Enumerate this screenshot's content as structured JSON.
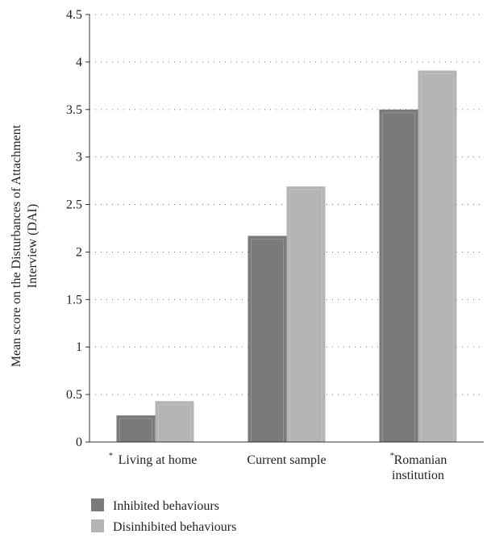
{
  "chart_data": {
    "type": "bar",
    "title": "",
    "xlabel": "",
    "ylabel_lines": [
      "Mean score on the Disturbances of Attachment",
      "Interview (DAI)"
    ],
    "categories": [
      {
        "lines": [
          "Living at home"
        ],
        "marked": true
      },
      {
        "lines": [
          "Current sample"
        ],
        "marked": false
      },
      {
        "lines": [
          "Romanian",
          "institution"
        ],
        "marked": true
      }
    ],
    "category_marker": "*",
    "series": [
      {
        "name": "Inhibited behaviours",
        "values": [
          0.28,
          2.17,
          3.5
        ],
        "color": "#7a7a7a"
      },
      {
        "name": "Disinhibited behaviours",
        "values": [
          0.43,
          2.69,
          3.91
        ],
        "color": "#b4b4b4"
      }
    ],
    "ylim": [
      0,
      4.5
    ],
    "yticks": [
      "0",
      "0.5",
      "1",
      "1.5",
      "2",
      "2.5",
      "3",
      "3.5",
      "4",
      "4.5"
    ],
    "grid": "dotted-horizontal",
    "legend_position": "bottom-left"
  }
}
